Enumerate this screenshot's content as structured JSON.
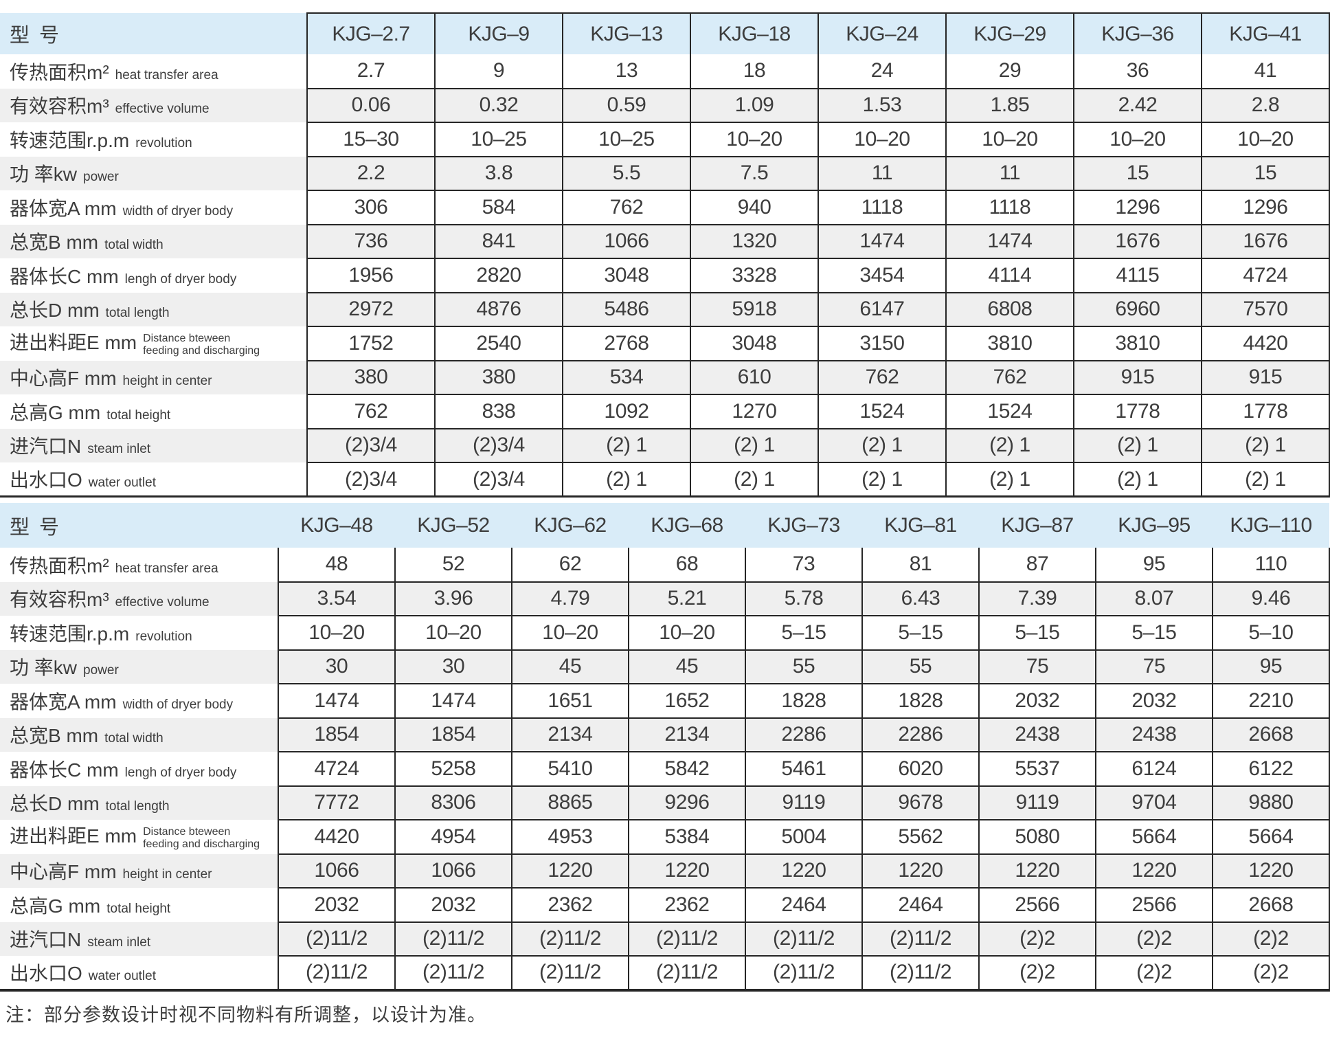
{
  "colors": {
    "header_bg": "#d9ecf8",
    "stripe_bg": "#efefef",
    "grid": "#262626",
    "text": "#3d3d3d"
  },
  "page": {
    "footnote": "注：部分参数设计时视不同物料有所调整，以设计为准。"
  },
  "tables": [
    {
      "model_header": "型 号",
      "models": [
        "KJG–2.7",
        "KJG–9",
        "KJG–13",
        "KJG–18",
        "KJG–24",
        "KJG–29",
        "KJG–36",
        "KJG–41"
      ],
      "rows": [
        {
          "cn": "传热面积m²",
          "en": [
            "heat transfer area"
          ],
          "values": [
            "2.7",
            "9",
            "13",
            "18",
            "24",
            "29",
            "36",
            "41"
          ]
        },
        {
          "cn": "有效容积m³",
          "en": [
            "effective volume"
          ],
          "values": [
            "0.06",
            "0.32",
            "0.59",
            "1.09",
            "1.53",
            "1.85",
            "2.42",
            "2.8"
          ]
        },
        {
          "cn": "转速范围r.p.m",
          "en": [
            "revolution"
          ],
          "values": [
            "15–30",
            "10–25",
            "10–25",
            "10–20",
            "10–20",
            "10–20",
            "10–20",
            "10–20"
          ]
        },
        {
          "cn": "功 率kw",
          "en": [
            "power"
          ],
          "values": [
            "2.2",
            "3.8",
            "5.5",
            "7.5",
            "11",
            "11",
            "15",
            "15"
          ]
        },
        {
          "cn": "器体宽A mm",
          "en": [
            "width of dryer body"
          ],
          "values": [
            "306",
            "584",
            "762",
            "940",
            "1118",
            "1118",
            "1296",
            "1296"
          ]
        },
        {
          "cn": "总宽B mm",
          "en": [
            "total  width"
          ],
          "values": [
            "736",
            "841",
            "1066",
            "1320",
            "1474",
            "1474",
            "1676",
            "1676"
          ]
        },
        {
          "cn": "器体长C mm",
          "en": [
            "lengh of dryer body"
          ],
          "values": [
            "1956",
            "2820",
            "3048",
            "3328",
            "3454",
            "4114",
            "4115",
            "4724"
          ]
        },
        {
          "cn": "总长D mm",
          "en": [
            "total length"
          ],
          "values": [
            "2972",
            "4876",
            "5486",
            "5918",
            "6147",
            "6808",
            "6960",
            "7570"
          ]
        },
        {
          "cn": "进出料距E mm",
          "en": [
            "Distance bteween",
            "feeding and discharging"
          ],
          "values": [
            "1752",
            "2540",
            "2768",
            "3048",
            "3150",
            "3810",
            "3810",
            "4420"
          ]
        },
        {
          "cn": "中心高F mm",
          "en": [
            "height in center"
          ],
          "values": [
            "380",
            "380",
            "534",
            "610",
            "762",
            "762",
            "915",
            "915"
          ]
        },
        {
          "cn": "总高G mm",
          "en": [
            "total height"
          ],
          "values": [
            "762",
            "838",
            "1092",
            "1270",
            "1524",
            "1524",
            "1778",
            "1778"
          ]
        },
        {
          "cn": "进汽口N",
          "en": [
            "steam inlet"
          ],
          "values": [
            "(2)3/4",
            "(2)3/4",
            "(2) 1",
            "(2) 1",
            "(2) 1",
            "(2) 1",
            "(2) 1",
            "(2) 1"
          ]
        },
        {
          "cn": "出水口O",
          "en": [
            "water outlet"
          ],
          "values": [
            "(2)3/4",
            "(2)3/4",
            "(2) 1",
            "(2) 1",
            "(2) 1",
            "(2) 1",
            "(2) 1",
            "(2) 1"
          ]
        }
      ]
    },
    {
      "model_header": "型 号",
      "models": [
        "KJG–48",
        "KJG–52",
        "KJG–62",
        "KJG–68",
        "KJG–73",
        "KJG–81",
        "KJG–87",
        "KJG–95",
        "KJG–110"
      ],
      "rows": [
        {
          "cn": "传热面积m²",
          "en": [
            "heat transfer area"
          ],
          "values": [
            "48",
            "52",
            "62",
            "68",
            "73",
            "81",
            "87",
            "95",
            "110"
          ]
        },
        {
          "cn": "有效容积m³",
          "en": [
            "effective volume"
          ],
          "values": [
            "3.54",
            "3.96",
            "4.79",
            "5.21",
            "5.78",
            "6.43",
            "7.39",
            "8.07",
            "9.46"
          ]
        },
        {
          "cn": "转速范围r.p.m",
          "en": [
            "revolution"
          ],
          "values": [
            "10–20",
            "10–20",
            "10–20",
            "10–20",
            "5–15",
            "5–15",
            "5–15",
            "5–15",
            "5–10"
          ]
        },
        {
          "cn": "功 率kw",
          "en": [
            "power"
          ],
          "values": [
            "30",
            "30",
            "45",
            "45",
            "55",
            "55",
            "75",
            "75",
            "95"
          ]
        },
        {
          "cn": "器体宽A mm",
          "en": [
            "width of dryer body"
          ],
          "values": [
            "1474",
            "1474",
            "1651",
            "1652",
            "1828",
            "1828",
            "2032",
            "2032",
            "2210"
          ]
        },
        {
          "cn": "总宽B mm",
          "en": [
            "total  width"
          ],
          "values": [
            "1854",
            "1854",
            "2134",
            "2134",
            "2286",
            "2286",
            "2438",
            "2438",
            "2668"
          ]
        },
        {
          "cn": "器体长C mm",
          "en": [
            "lengh of dryer body"
          ],
          "values": [
            "4724",
            "5258",
            "5410",
            "5842",
            "5461",
            "6020",
            "5537",
            "6124",
            "6122"
          ]
        },
        {
          "cn": "总长D mm",
          "en": [
            "total length"
          ],
          "values": [
            "7772",
            "8306",
            "8865",
            "9296",
            "9119",
            "9678",
            "9119",
            "9704",
            "9880"
          ]
        },
        {
          "cn": "进出料距E mm",
          "en": [
            "Distance bteween",
            "feeding and discharging"
          ],
          "values": [
            "4420",
            "4954",
            "4953",
            "5384",
            "5004",
            "5562",
            "5080",
            "5664",
            "5664"
          ]
        },
        {
          "cn": "中心高F mm",
          "en": [
            "height in center"
          ],
          "values": [
            "1066",
            "1066",
            "1220",
            "1220",
            "1220",
            "1220",
            "1220",
            "1220",
            "1220"
          ]
        },
        {
          "cn": "总高G mm",
          "en": [
            "total height"
          ],
          "values": [
            "2032",
            "2032",
            "2362",
            "2362",
            "2464",
            "2464",
            "2566",
            "2566",
            "2668"
          ]
        },
        {
          "cn": "进汽口N",
          "en": [
            "steam inlet"
          ],
          "values": [
            "(2)11/2",
            "(2)11/2",
            "(2)11/2",
            "(2)11/2",
            "(2)11/2",
            "(2)11/2",
            "(2)2",
            "(2)2",
            "(2)2"
          ]
        },
        {
          "cn": "出水口O",
          "en": [
            "water outlet"
          ],
          "values": [
            "(2)11/2",
            "(2)11/2",
            "(2)11/2",
            "(2)11/2",
            "(2)11/2",
            "(2)11/2",
            "(2)2",
            "(2)2",
            "(2)2"
          ]
        }
      ]
    }
  ]
}
